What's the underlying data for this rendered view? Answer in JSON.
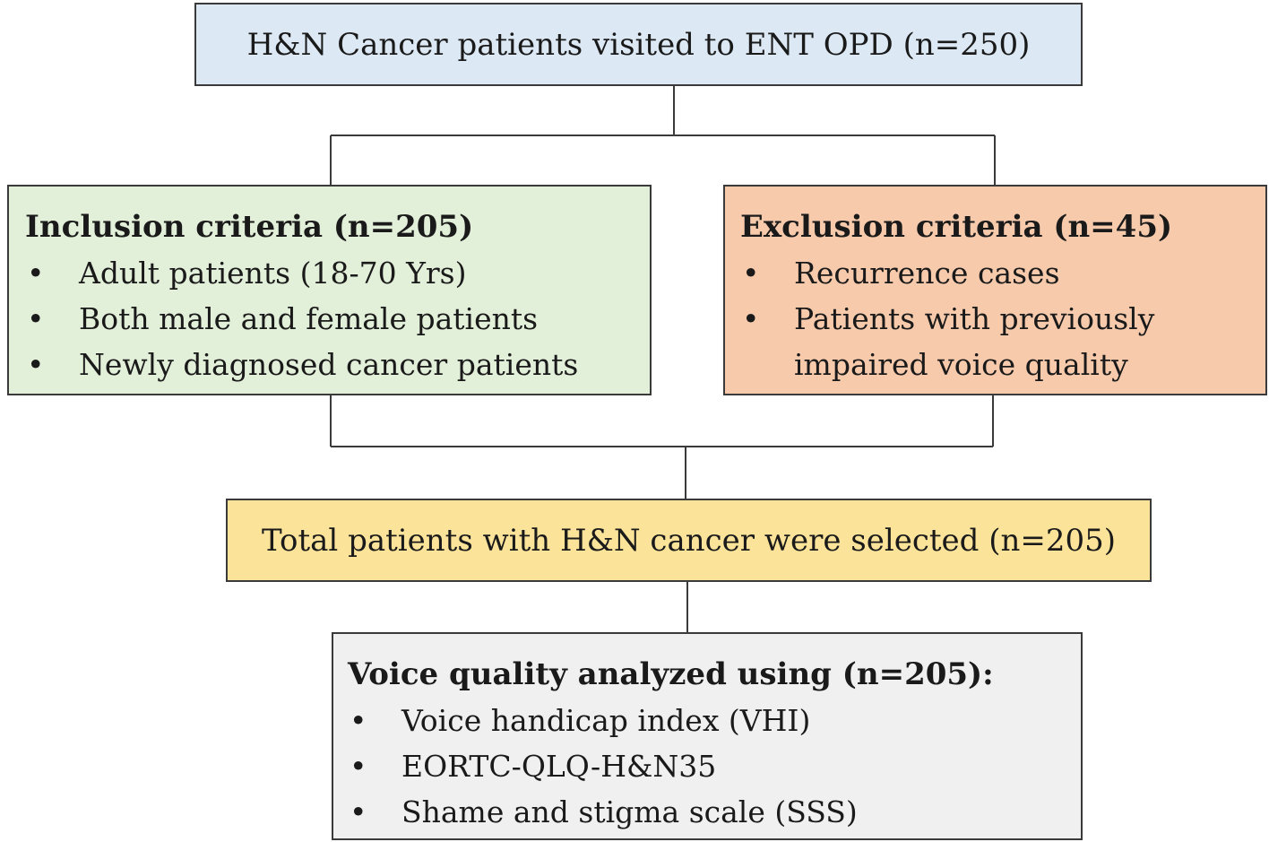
{
  "flowchart": {
    "top": {
      "text": "H&N Cancer patients visited to ENT OPD (n=250)"
    },
    "inclusion": {
      "title": "Inclusion criteria (n=205)",
      "items": [
        "Adult patients (18-70 Yrs)",
        "Both male and female patients",
        "Newly diagnosed cancer patients"
      ]
    },
    "exclusion": {
      "title": "Exclusion criteria (n=45)",
      "items": [
        "Recurrence cases",
        "Patients with previously",
        "impaired voice quality"
      ]
    },
    "selected": {
      "text": "Total patients with H&N cancer were selected (n=205)"
    },
    "voice": {
      "title": "Voice quality analyzed using (n=205):",
      "items": [
        "Voice handicap index (VHI)",
        "EORTC-QLQ-H&N35",
        "Shame and stigma scale (SSS)"
      ]
    },
    "bullet": "•",
    "colors": {
      "top_fill": "#dce9f5",
      "inclusion_fill": "#e2efd9",
      "exclusion_fill": "#f7caac",
      "selected_fill": "#fbe49a",
      "voice_fill": "#f0f0f0",
      "border": "#3a3a3a"
    }
  }
}
